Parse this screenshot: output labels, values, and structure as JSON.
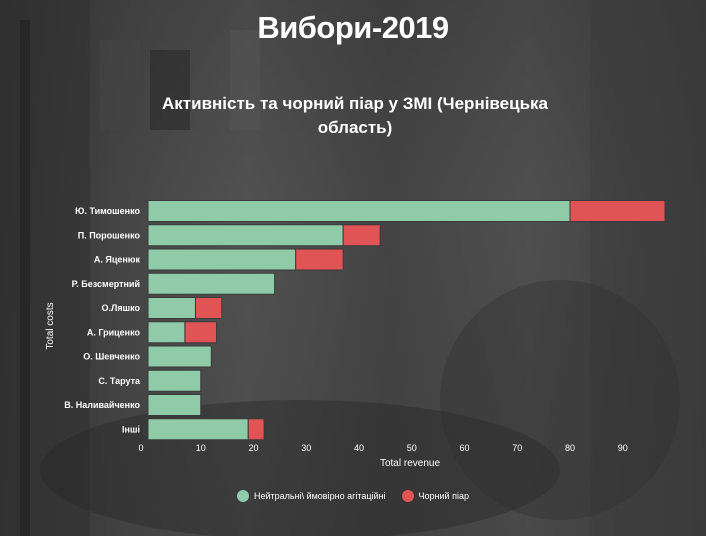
{
  "page": {
    "title": "Вибори-2019"
  },
  "chart_data": {
    "type": "bar",
    "orientation": "horizontal",
    "stacked": true,
    "title": "Активність та чорний піар у ЗМІ (Чернівецька область)",
    "xlabel": "Total revenue",
    "ylabel": "Total costs",
    "xlim": [
      0,
      98
    ],
    "xticks": [
      0,
      10,
      20,
      30,
      40,
      50,
      60,
      70,
      80,
      90
    ],
    "grid": false,
    "legend_position": "bottom-center",
    "categories": [
      "Ю. Тимошенко",
      "П. Порошенко",
      "А. Яценюк",
      "Р. Безсмертний",
      "О.Ляшко",
      "А. Гриценко",
      "О. Шевченко",
      "С. Тарута",
      "В. Наливайченко",
      "Інші"
    ],
    "series": [
      {
        "name": "Нейтральні\\ ймовірно агітаційні",
        "color": "#8fcaa9",
        "values": [
          80,
          37,
          28,
          24,
          9,
          7,
          12,
          10,
          10,
          19
        ]
      },
      {
        "name": "Чорний піар",
        "color": "#e05456",
        "values": [
          18,
          7,
          9,
          0,
          5,
          6,
          0,
          0,
          0,
          3
        ]
      }
    ]
  }
}
